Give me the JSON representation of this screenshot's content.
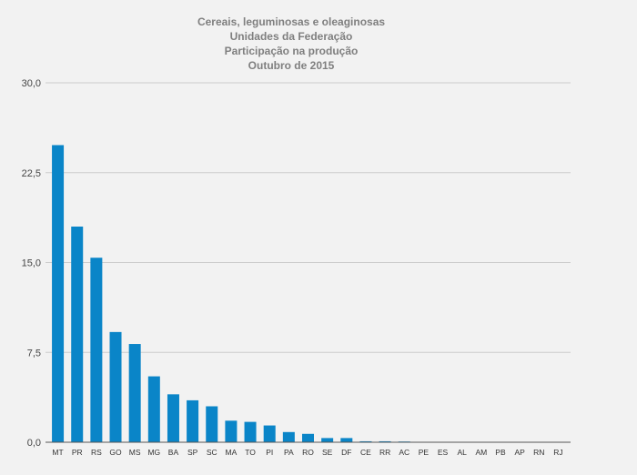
{
  "chart_data": {
    "type": "bar",
    "title_lines": [
      "Cereais, leguminosas e oleaginosas",
      "Unidades da Federação",
      "Participação na produção",
      "Outubro de 2015"
    ],
    "xlabel": "",
    "ylabel": "",
    "ylim": [
      0,
      30
    ],
    "yticks": [
      0,
      7.5,
      15,
      22.5,
      30
    ],
    "ytick_labels": [
      "0,0",
      "7,5",
      "15,0",
      "22,5",
      "30,0"
    ],
    "grid": true,
    "legend": "none",
    "bar_color": "#0a85c8",
    "categories": [
      "MT",
      "PR",
      "RS",
      "GO",
      "MS",
      "MG",
      "BA",
      "SP",
      "SC",
      "MA",
      "TO",
      "PI",
      "PA",
      "RO",
      "SE",
      "DF",
      "CE",
      "RR",
      "AC",
      "PE",
      "ES",
      "AL",
      "AM",
      "PB",
      "AP",
      "RN",
      "RJ"
    ],
    "values": [
      24.8,
      18.0,
      15.4,
      9.2,
      8.2,
      5.5,
      4.0,
      3.5,
      3.0,
      1.8,
      1.7,
      1.4,
      0.85,
      0.7,
      0.35,
      0.35,
      0.08,
      0.08,
      0.06,
      0.03,
      0.03,
      0.02,
      0.02,
      0.01,
      0.01,
      0.01,
      0.01
    ]
  }
}
